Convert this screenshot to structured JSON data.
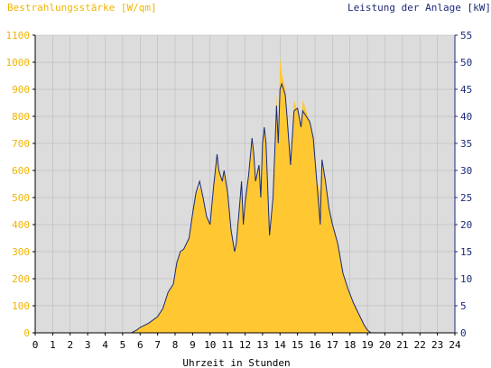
{
  "colors": {
    "plot_bg": "#dcdcdc",
    "irradiance": "#ffc832",
    "power": "#1a2a78",
    "left_axis_text": "#f0b400",
    "right_axis_text": "#1a2a78",
    "grid": "#b4b4b4"
  },
  "chart_data": {
    "type": "area",
    "title_left": "Bestrahlungsstärke [W/qm]",
    "title_right": "Leistung der Anlage [kW]",
    "xlabel": "Uhrzeit in Stunden",
    "xlim": [
      0,
      24
    ],
    "ylim_left": [
      0,
      1100
    ],
    "ylim_right": [
      0,
      55
    ],
    "grid": true,
    "x_ticks": [
      "0",
      "1",
      "2",
      "3",
      "4",
      "5",
      "6",
      "7",
      "8",
      "9",
      "10",
      "11",
      "12",
      "13",
      "14",
      "15",
      "16",
      "17",
      "18",
      "19",
      "20",
      "21",
      "22",
      "23",
      "24"
    ],
    "y_left_ticks": [
      "0",
      "100",
      "200",
      "300",
      "400",
      "500",
      "600",
      "700",
      "800",
      "900",
      "1000",
      "1100"
    ],
    "y_right_ticks": [
      "0",
      "5",
      "10",
      "15",
      "20",
      "25",
      "30",
      "35",
      "40",
      "45",
      "50",
      "55"
    ],
    "series": [
      {
        "name": "Bestrahlungsstärke",
        "axis": "left",
        "kind": "area",
        "points": [
          [
            0,
            0
          ],
          [
            5.5,
            0
          ],
          [
            5.8,
            10
          ],
          [
            6.0,
            20
          ],
          [
            6.5,
            35
          ],
          [
            7.0,
            60
          ],
          [
            7.3,
            90
          ],
          [
            7.6,
            150
          ],
          [
            7.9,
            180
          ],
          [
            8.1,
            260
          ],
          [
            8.3,
            300
          ],
          [
            8.5,
            310
          ],
          [
            8.8,
            350
          ],
          [
            9.0,
            440
          ],
          [
            9.2,
            520
          ],
          [
            9.4,
            540
          ],
          [
            9.6,
            500
          ],
          [
            9.8,
            430
          ],
          [
            10.0,
            400
          ],
          [
            10.2,
            540
          ],
          [
            10.4,
            660
          ],
          [
            10.5,
            600
          ],
          [
            10.7,
            560
          ],
          [
            10.8,
            600
          ],
          [
            11.0,
            520
          ],
          [
            11.2,
            380
          ],
          [
            11.4,
            300
          ],
          [
            11.5,
            330
          ],
          [
            11.7,
            480
          ],
          [
            11.8,
            560
          ],
          [
            11.9,
            400
          ],
          [
            12.0,
            480
          ],
          [
            12.2,
            580
          ],
          [
            12.4,
            720
          ],
          [
            12.5,
            660
          ],
          [
            12.6,
            560
          ],
          [
            12.8,
            620
          ],
          [
            12.9,
            500
          ],
          [
            13.0,
            700
          ],
          [
            13.1,
            760
          ],
          [
            13.2,
            700
          ],
          [
            13.4,
            360
          ],
          [
            13.6,
            500
          ],
          [
            13.8,
            880
          ],
          [
            13.9,
            700
          ],
          [
            14.0,
            1020
          ],
          [
            14.1,
            960
          ],
          [
            14.3,
            900
          ],
          [
            14.4,
            810
          ],
          [
            14.6,
            620
          ],
          [
            14.8,
            860
          ],
          [
            15.0,
            820
          ],
          [
            15.2,
            760
          ],
          [
            15.3,
            860
          ],
          [
            15.5,
            820
          ],
          [
            15.7,
            780
          ],
          [
            15.9,
            720
          ],
          [
            16.1,
            560
          ],
          [
            16.3,
            520
          ],
          [
            16.4,
            620
          ],
          [
            16.6,
            560
          ],
          [
            16.8,
            460
          ],
          [
            17.0,
            400
          ],
          [
            17.3,
            330
          ],
          [
            17.6,
            220
          ],
          [
            17.9,
            160
          ],
          [
            18.2,
            110
          ],
          [
            18.5,
            70
          ],
          [
            18.8,
            30
          ],
          [
            19.0,
            10
          ],
          [
            19.2,
            0
          ],
          [
            24,
            0
          ]
        ]
      },
      {
        "name": "Leistung",
        "axis": "right",
        "kind": "line",
        "points": [
          [
            0,
            0
          ],
          [
            5.5,
            0
          ],
          [
            5.8,
            0.5
          ],
          [
            6.0,
            1.0
          ],
          [
            6.5,
            1.8
          ],
          [
            7.0,
            3.0
          ],
          [
            7.3,
            4.5
          ],
          [
            7.6,
            7.5
          ],
          [
            7.9,
            9.0
          ],
          [
            8.1,
            13.0
          ],
          [
            8.3,
            15.0
          ],
          [
            8.5,
            15.5
          ],
          [
            8.8,
            17.5
          ],
          [
            9.0,
            22.0
          ],
          [
            9.2,
            26.0
          ],
          [
            9.4,
            28.0
          ],
          [
            9.6,
            25.0
          ],
          [
            9.8,
            21.5
          ],
          [
            10.0,
            20.0
          ],
          [
            10.2,
            27.0
          ],
          [
            10.4,
            33.0
          ],
          [
            10.5,
            30.0
          ],
          [
            10.7,
            28.0
          ],
          [
            10.8,
            30.0
          ],
          [
            11.0,
            26.0
          ],
          [
            11.2,
            19.0
          ],
          [
            11.4,
            15.0
          ],
          [
            11.5,
            16.5
          ],
          [
            11.7,
            24.0
          ],
          [
            11.8,
            28.0
          ],
          [
            11.9,
            20.0
          ],
          [
            12.0,
            24.0
          ],
          [
            12.2,
            29.0
          ],
          [
            12.4,
            36.0
          ],
          [
            12.5,
            33.0
          ],
          [
            12.6,
            28.0
          ],
          [
            12.8,
            31.0
          ],
          [
            12.9,
            25.0
          ],
          [
            13.0,
            35.0
          ],
          [
            13.1,
            38.0
          ],
          [
            13.2,
            35.0
          ],
          [
            13.4,
            18.0
          ],
          [
            13.6,
            25.0
          ],
          [
            13.8,
            42.0
          ],
          [
            13.9,
            35.0
          ],
          [
            14.0,
            45.0
          ],
          [
            14.1,
            46.0
          ],
          [
            14.3,
            44.0
          ],
          [
            14.4,
            40.0
          ],
          [
            14.6,
            31.0
          ],
          [
            14.8,
            41.0
          ],
          [
            15.0,
            41.5
          ],
          [
            15.2,
            38.0
          ],
          [
            15.3,
            41.0
          ],
          [
            15.5,
            40.0
          ],
          [
            15.7,
            39.0
          ],
          [
            15.9,
            36.0
          ],
          [
            16.1,
            28.0
          ],
          [
            16.3,
            20.0
          ],
          [
            16.4,
            32.0
          ],
          [
            16.6,
            28.0
          ],
          [
            16.8,
            23.0
          ],
          [
            17.0,
            20.0
          ],
          [
            17.3,
            16.5
          ],
          [
            17.6,
            11.0
          ],
          [
            17.9,
            8.0
          ],
          [
            18.2,
            5.5
          ],
          [
            18.5,
            3.5
          ],
          [
            18.8,
            1.5
          ],
          [
            19.0,
            0.5
          ],
          [
            19.2,
            0
          ],
          [
            24,
            0
          ]
        ]
      }
    ]
  }
}
